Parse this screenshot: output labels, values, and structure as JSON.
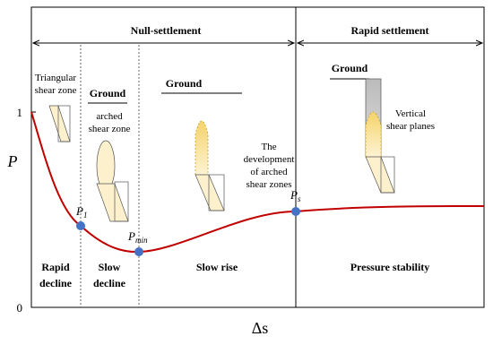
{
  "header": {
    "left": "Null-settlement",
    "right": "Rapid settlement"
  },
  "axes": {
    "y_label": "P",
    "x_label": "Δs",
    "y_ticks": [
      "1",
      "0"
    ]
  },
  "points": [
    {
      "label": "P",
      "subscript": "1"
    },
    {
      "label": "P",
      "subscript": "min"
    },
    {
      "label": "P",
      "subscript": "s"
    }
  ],
  "phases": [
    [
      "Rapid",
      "decline"
    ],
    [
      "Slow",
      "decline"
    ],
    [
      "Slow rise"
    ],
    [
      "Pressure stability"
    ]
  ],
  "annotations": {
    "triangular": [
      "Triangular",
      "shear zone"
    ],
    "ground": [
      "Ground",
      "Ground",
      "Ground"
    ],
    "arched": [
      "arched",
      "shear zone"
    ],
    "development": [
      "The",
      "development",
      "of arched",
      "shear zones"
    ],
    "vertical": [
      "Vertical",
      "shear planes"
    ]
  }
}
